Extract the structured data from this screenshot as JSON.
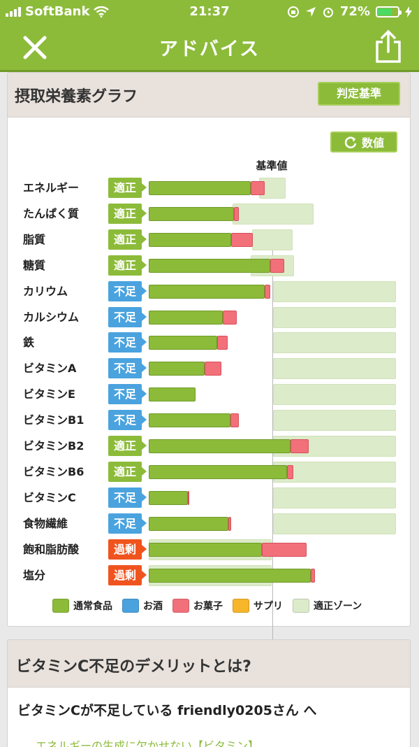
{
  "status": {
    "carrier": "SoftBank",
    "time": "21:37",
    "battery": "72%"
  },
  "header": {
    "title": "アドバイス"
  },
  "graph_card": {
    "title": "摂取栄養素グラフ",
    "judge_button": "判定基準",
    "value_button": "数値",
    "reference_label": "基準値"
  },
  "rows": [
    {
      "name": "エネルギー",
      "status": "適正",
      "level": "ok",
      "food": 146,
      "snack": 20,
      "zone": [
        360,
        398
      ]
    },
    {
      "name": "たんぱく質",
      "status": "適正",
      "level": "ok",
      "food": 122,
      "snack": 7,
      "zone": [
        322,
        438
      ]
    },
    {
      "name": "脂質",
      "status": "適正",
      "level": "ok",
      "food": 118,
      "snack": 31,
      "zone": [
        350,
        408
      ]
    },
    {
      "name": "糖質",
      "status": "適正",
      "level": "ok",
      "food": 174,
      "snack": 20,
      "zone": [
        348,
        410
      ]
    },
    {
      "name": "カリウム",
      "status": "不足",
      "level": "low",
      "food": 166,
      "snack": 8,
      "zone": [
        380,
        556
      ]
    },
    {
      "name": "カルシウム",
      "status": "不足",
      "level": "low",
      "food": 106,
      "snack": 20,
      "zone": [
        380,
        556
      ]
    },
    {
      "name": "鉄",
      "status": "不足",
      "level": "low",
      "food": 98,
      "snack": 15,
      "zone": [
        380,
        556
      ]
    },
    {
      "name": "ビタミンA",
      "status": "不足",
      "level": "low",
      "food": 80,
      "snack": 24,
      "zone": [
        380,
        556
      ]
    },
    {
      "name": "ビタミンE",
      "status": "不足",
      "level": "low",
      "food": 67,
      "snack": 0,
      "zone": [
        380,
        556
      ]
    },
    {
      "name": "ビタミンB1",
      "status": "不足",
      "level": "low",
      "food": 117,
      "snack": 12,
      "zone": [
        380,
        556
      ]
    },
    {
      "name": "ビタミンB2",
      "status": "適正",
      "level": "ok",
      "food": 203,
      "snack": 26,
      "zone": [
        380,
        556
      ]
    },
    {
      "name": "ビタミンB6",
      "status": "適正",
      "level": "ok",
      "food": 198,
      "snack": 9,
      "zone": [
        380,
        556
      ]
    },
    {
      "name": "ビタミンC",
      "status": "不足",
      "level": "low",
      "food": 56,
      "snack": 2,
      "zone": [
        380,
        556
      ]
    },
    {
      "name": "食物繊維",
      "status": "不足",
      "level": "low",
      "food": 114,
      "snack": 4,
      "zone": [
        380,
        556
      ]
    },
    {
      "name": "飽和脂肪酸",
      "status": "過剰",
      "level": "high",
      "food": 162,
      "snack": 64,
      "zone": [
        202,
        378
      ]
    },
    {
      "name": "塩分",
      "status": "過剰",
      "level": "high",
      "food": 232,
      "snack": 6,
      "zone": [
        202,
        378
      ]
    }
  ],
  "legend": [
    {
      "label": "通常食品",
      "color": "#8cbb3a"
    },
    {
      "label": "お酒",
      "color": "#4aa3de"
    },
    {
      "label": "お菓子",
      "color": "#f2707a"
    },
    {
      "label": "サプリ",
      "color": "#f7b52a"
    },
    {
      "label": "適正ゾーン",
      "color": "#dcebca"
    }
  ],
  "advice_card": {
    "title": "ビタミンC不足のデメリットとは?",
    "body": "ビタミンCが不足している friendly0205さん へ",
    "more": "エネルギーの生成に欠かせない【ビタミン】"
  }
}
